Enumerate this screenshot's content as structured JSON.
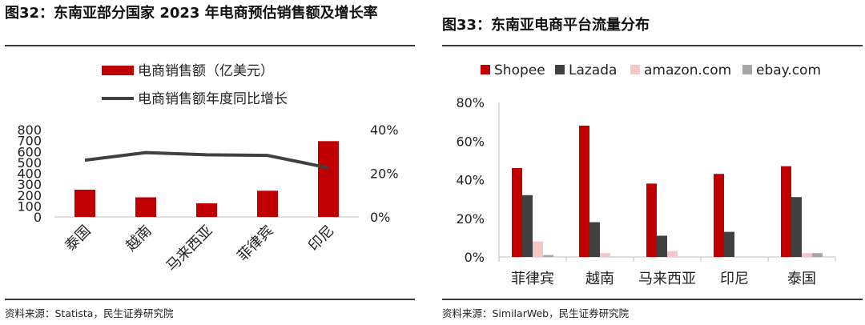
{
  "left": {
    "title": "图32：东南亚部分国家 2023 年电商预估销售额及增长率",
    "source": "资料来源：Statista，民生证券研究院",
    "chart_data": {
      "type": "bar",
      "categories": [
        "泰国",
        "越南",
        "马来西亚",
        "菲律宾",
        "印尼"
      ],
      "series": [
        {
          "name": "电商销售额（亿美元）",
          "type": "bar",
          "axis": "left",
          "color": "#C00000",
          "values": [
            250,
            180,
            125,
            240,
            695
          ]
        },
        {
          "name": "电商销售额年度同比增长",
          "type": "line",
          "axis": "right",
          "color": "#404040",
          "values": [
            0.26,
            0.295,
            0.285,
            0.282,
            0.225
          ]
        }
      ],
      "y_left": {
        "ticks": [
          "0",
          "100",
          "200",
          "300",
          "400",
          "500",
          "600",
          "700",
          "800"
        ],
        "lim": [
          0,
          800
        ]
      },
      "y_right": {
        "ticks": [
          "0%",
          "20%",
          "40%"
        ],
        "lim": [
          0,
          0.4
        ]
      },
      "legend": "top",
      "grid": false
    }
  },
  "right": {
    "title": "图33：东南亚电商平台流量分布",
    "source": "资料来源：SimilarWeb，民生证券研究院",
    "chart_data": {
      "type": "bar",
      "categories": [
        "菲律宾",
        "越南",
        "马来西亚",
        "印尼",
        "泰国"
      ],
      "series": [
        {
          "name": "Shopee",
          "color": "#C00000",
          "values": [
            0.46,
            0.68,
            0.38,
            0.43,
            0.47
          ]
        },
        {
          "name": "Lazada",
          "color": "#404040",
          "values": [
            0.32,
            0.18,
            0.11,
            0.13,
            0.31
          ]
        },
        {
          "name": "amazon.com",
          "color": "#F4C7C7",
          "values": [
            0.08,
            0.02,
            0.03,
            0,
            0.02
          ]
        },
        {
          "name": "ebay.com",
          "color": "#A6A6A6",
          "values": [
            0.01,
            0,
            0,
            0,
            0.02
          ]
        }
      ],
      "y": {
        "ticks": [
          "0%",
          "20%",
          "40%",
          "60%",
          "80%"
        ],
        "lim": [
          0,
          0.8
        ]
      },
      "legend": "top",
      "grid": false
    }
  }
}
